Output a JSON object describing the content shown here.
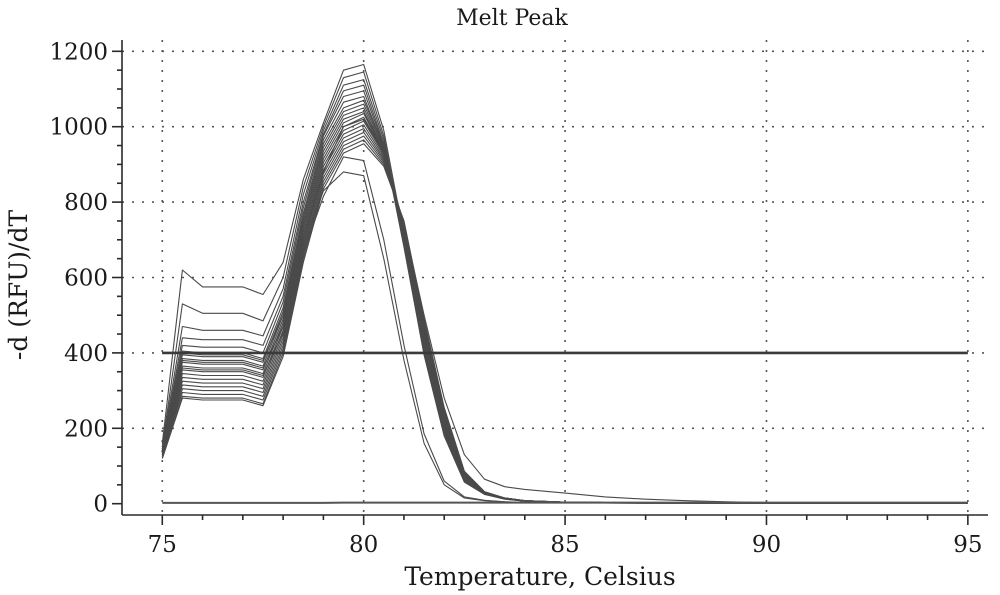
{
  "chart_data": {
    "type": "line",
    "title": "Melt Peak",
    "xlabel": "Temperature, Celsius",
    "ylabel": "-d (RFU)/dT",
    "xlim": [
      74,
      95.5
    ],
    "ylim": [
      -30,
      1230
    ],
    "x_ticks": [
      75,
      80,
      85,
      90,
      95
    ],
    "y_ticks": [
      0,
      200,
      400,
      600,
      800,
      1000,
      1200
    ],
    "grid": true,
    "threshold": 400,
    "x": [
      75,
      75.5,
      76,
      76.5,
      77,
      77.5,
      78,
      78.5,
      79,
      79.5,
      80,
      80.5,
      81,
      81.5,
      82,
      82.5,
      83,
      83.5,
      84,
      85,
      86,
      87,
      88,
      89,
      90,
      92,
      94,
      95
    ],
    "series": [
      {
        "values": [
          160,
          620,
          575,
          575,
          575,
          555,
          640,
          860,
          1010,
          1150,
          1165,
          990,
          710,
          420,
          200,
          70,
          30,
          15,
          8,
          4,
          3,
          2,
          2,
          1,
          1,
          1,
          1,
          1
        ]
      },
      {
        "values": [
          150,
          530,
          505,
          505,
          505,
          485,
          600,
          840,
          1000,
          1130,
          1145,
          975,
          700,
          410,
          190,
          65,
          28,
          14,
          7,
          4,
          3,
          2,
          2,
          1,
          1,
          1,
          1,
          1
        ]
      },
      {
        "values": [
          150,
          470,
          460,
          460,
          460,
          445,
          570,
          820,
          990,
          1110,
          1125,
          965,
          690,
          400,
          185,
          60,
          26,
          13,
          7,
          4,
          3,
          2,
          2,
          1,
          1,
          1,
          1,
          1
        ]
      },
      {
        "values": [
          145,
          440,
          435,
          435,
          435,
          420,
          550,
          800,
          980,
          1095,
          1110,
          955,
          685,
          395,
          180,
          58,
          25,
          13,
          7,
          4,
          3,
          2,
          2,
          1,
          1,
          1,
          1,
          1
        ]
      },
      {
        "values": [
          145,
          420,
          415,
          415,
          415,
          400,
          535,
          785,
          975,
          1080,
          1095,
          950,
          680,
          395,
          180,
          57,
          25,
          12,
          7,
          4,
          3,
          2,
          2,
          1,
          1,
          1,
          1,
          1
        ]
      },
      {
        "values": [
          140,
          405,
          400,
          400,
          400,
          385,
          520,
          770,
          965,
          1065,
          1080,
          945,
          690,
          410,
          190,
          60,
          26,
          13,
          7,
          4,
          3,
          2,
          2,
          1,
          1,
          1,
          1,
          1
        ]
      },
      {
        "values": [
          140,
          395,
          390,
          390,
          390,
          375,
          510,
          760,
          955,
          1050,
          1070,
          945,
          700,
          420,
          195,
          62,
          26,
          13,
          7,
          4,
          3,
          2,
          2,
          1,
          1,
          1,
          1,
          1
        ]
      },
      {
        "values": [
          140,
          385,
          380,
          380,
          380,
          365,
          500,
          750,
          945,
          1040,
          1060,
          940,
          705,
          430,
          200,
          64,
          27,
          13,
          7,
          4,
          3,
          2,
          2,
          1,
          1,
          1,
          1,
          1
        ]
      },
      {
        "values": [
          135,
          375,
          370,
          370,
          370,
          355,
          490,
          740,
          935,
          1030,
          1050,
          935,
          710,
          435,
          205,
          66,
          27,
          13,
          7,
          4,
          3,
          2,
          2,
          1,
          1,
          1,
          1,
          1
        ]
      },
      {
        "values": [
          135,
          365,
          360,
          360,
          360,
          345,
          480,
          730,
          925,
          1020,
          1040,
          935,
          715,
          445,
          210,
          68,
          28,
          14,
          7,
          4,
          3,
          2,
          2,
          1,
          1,
          1,
          1,
          1
        ]
      },
      {
        "values": [
          135,
          355,
          350,
          350,
          350,
          335,
          470,
          720,
          915,
          1010,
          1035,
          930,
          720,
          450,
          215,
          70,
          28,
          14,
          7,
          4,
          3,
          2,
          2,
          1,
          1,
          1,
          1,
          1
        ]
      },
      {
        "values": [
          130,
          345,
          340,
          340,
          340,
          325,
          460,
          710,
          905,
          1000,
          1025,
          930,
          725,
          455,
          220,
          72,
          28,
          14,
          7,
          4,
          3,
          2,
          2,
          1,
          1,
          1,
          1,
          1
        ]
      },
      {
        "values": [
          130,
          335,
          330,
          330,
          330,
          315,
          450,
          700,
          895,
          990,
          1015,
          925,
          730,
          460,
          225,
          74,
          29,
          14,
          7,
          4,
          3,
          2,
          2,
          1,
          1,
          1,
          1,
          1
        ]
      },
      {
        "values": [
          130,
          325,
          320,
          320,
          320,
          305,
          440,
          690,
          885,
          980,
          1005,
          920,
          735,
          465,
          230,
          76,
          29,
          14,
          7,
          4,
          3,
          2,
          2,
          1,
          1,
          1,
          1,
          1
        ]
      },
      {
        "values": [
          125,
          315,
          310,
          310,
          310,
          295,
          430,
          680,
          875,
          970,
          995,
          915,
          735,
          470,
          235,
          78,
          30,
          15,
          8,
          4,
          3,
          2,
          2,
          1,
          1,
          1,
          1,
          1
        ]
      },
      {
        "values": [
          125,
          305,
          300,
          300,
          300,
          285,
          420,
          670,
          865,
          960,
          985,
          910,
          740,
          475,
          240,
          80,
          30,
          15,
          8,
          4,
          3,
          2,
          2,
          1,
          1,
          1,
          1,
          1
        ]
      },
      {
        "values": [
          125,
          295,
          290,
          290,
          290,
          275,
          410,
          660,
          855,
          950,
          975,
          905,
          740,
          480,
          245,
          82,
          31,
          15,
          8,
          4,
          3,
          2,
          2,
          1,
          1,
          1,
          1,
          1
        ]
      },
      {
        "values": [
          120,
          285,
          280,
          280,
          280,
          265,
          400,
          650,
          845,
          940,
          965,
          900,
          745,
          485,
          250,
          84,
          31,
          15,
          8,
          4,
          3,
          2,
          2,
          1,
          1,
          1,
          1,
          1
        ]
      },
      {
        "values": [
          120,
          280,
          275,
          275,
          275,
          260,
          390,
          640,
          835,
          930,
          955,
          895,
          750,
          490,
          255,
          86,
          32,
          15,
          8,
          4,
          3,
          2,
          2,
          1,
          1,
          1,
          1,
          1
        ]
      },
      {
        "values": [
          150,
          380,
          375,
          375,
          375,
          360,
          470,
          680,
          830,
          880,
          870,
          650,
          380,
          160,
          50,
          15,
          8,
          5,
          3,
          2,
          2,
          1,
          1,
          1,
          1,
          1,
          1,
          1
        ]
      },
      {
        "values": [
          150,
          360,
          355,
          355,
          355,
          340,
          455,
          665,
          815,
          920,
          910,
          700,
          420,
          185,
          60,
          18,
          9,
          5,
          3,
          2,
          2,
          1,
          1,
          1,
          1,
          1,
          1,
          1
        ]
      },
      {
        "values": [
          145,
          400,
          395,
          395,
          395,
          380,
          500,
          700,
          880,
          1000,
          1020,
          930,
          740,
          500,
          280,
          130,
          65,
          45,
          38,
          28,
          18,
          12,
          8,
          5,
          3,
          2,
          2,
          2
        ]
      },
      {
        "values": [
          2,
          2,
          2,
          2,
          2,
          2,
          2,
          2,
          2,
          3,
          3,
          3,
          3,
          3,
          3,
          3,
          3,
          3,
          3,
          3,
          3,
          3,
          3,
          3,
          3,
          3,
          3,
          3
        ]
      }
    ]
  }
}
